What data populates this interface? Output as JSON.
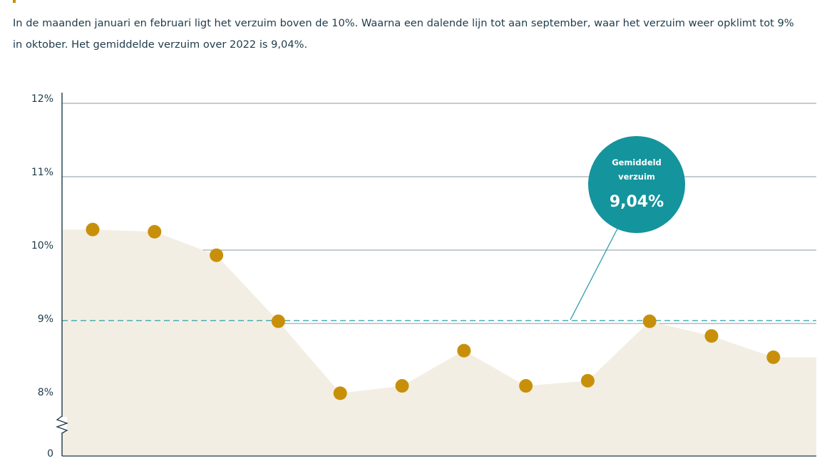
{
  "description": "In de maanden januari en februari ligt het verzuim boven de 10%. Waarna een dalende lijn tot aan september, waar het verzuim weer opklimt tot 9% in oktober. Het gemiddelde verzuim over 2022 is 9,04%.",
  "colors": {
    "area": "#f3eee3",
    "marker": "#c8900a",
    "average_line": "#2a9fa8",
    "bubble": "#14949c",
    "grid": "#8a9aa3",
    "axis": "#1d3b4a",
    "accent": "#c8900a"
  },
  "chart_data": {
    "type": "area",
    "y_tick_labels": [
      "12%",
      "11%",
      "10%",
      "9%",
      "8%",
      "0"
    ],
    "y_ticks": [
      12,
      11,
      10,
      9,
      8
    ],
    "ylim": [
      7.1,
      12
    ],
    "axis_break": true,
    "grid": true,
    "values": [
      10.28,
      10.25,
      9.93,
      9.03,
      8.05,
      8.15,
      8.63,
      8.15,
      8.22,
      9.03,
      8.83,
      8.54
    ],
    "average": {
      "value": 9.04,
      "label_line1": "Gemiddeld",
      "label_line2": "verzuim",
      "label_value": "9,04%"
    }
  }
}
